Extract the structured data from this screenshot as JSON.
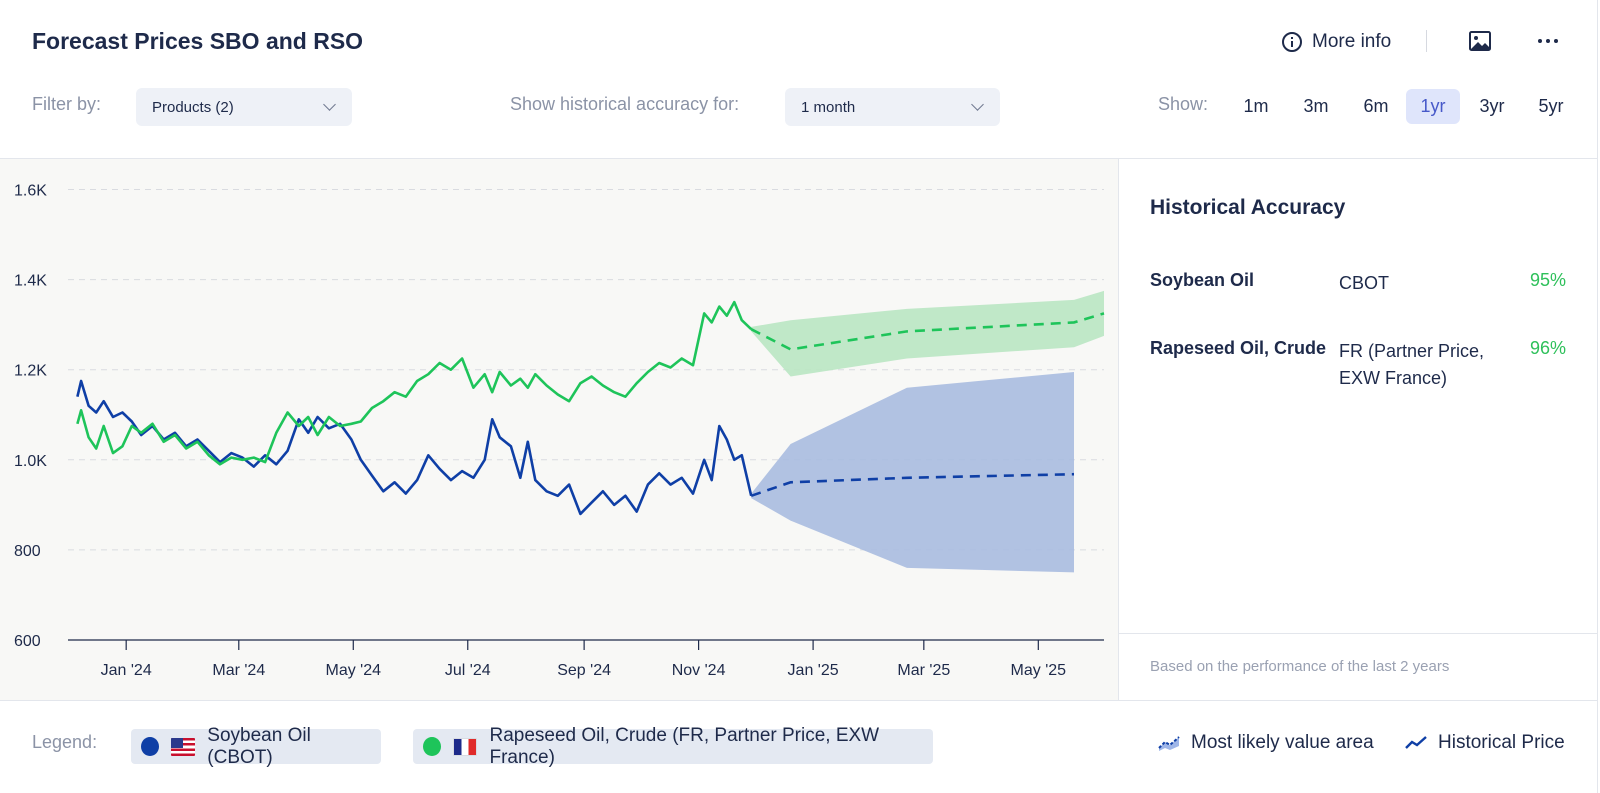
{
  "header": {
    "title": "Forecast Prices SBO and RSO",
    "more_info_label": "More info"
  },
  "filters": {
    "filter_label": "Filter by:",
    "products_value": "Products (2)",
    "accuracy_label": "Show historical accuracy for:",
    "accuracy_value": "1 month",
    "show_label": "Show:",
    "ranges": [
      "1m",
      "3m",
      "6m",
      "1yr",
      "3yr",
      "5yr"
    ],
    "active_range": "1yr"
  },
  "side_panel": {
    "title": "Historical Accuracy",
    "rows": [
      {
        "product": "Soybean Oil",
        "source": "CBOT",
        "accuracy": "95%"
      },
      {
        "product": "Rapeseed Oil, Crude",
        "source": "FR (Partner Price, EXW France)",
        "accuracy": "96%"
      }
    ],
    "footnote": "Based on the performance of the last 2 years"
  },
  "legend": {
    "label": "Legend:",
    "items": [
      {
        "name": "Soybean Oil (CBOT)",
        "color": "#0f3fa6",
        "flag": "us-flag"
      },
      {
        "name": "Rapeseed Oil, Crude (FR, Partner Price, EXW France)",
        "color": "#1ec45a",
        "flag": "fr-flag"
      }
    ],
    "area_label": "Most likely value area",
    "historical_label": "Historical Price"
  },
  "chart_data": {
    "type": "line",
    "ylim": [
      600,
      1650
    ],
    "yticks": [
      600,
      800,
      1000,
      1200,
      1400,
      1600
    ],
    "ytick_labels": [
      "600",
      "800",
      "1.0K",
      "1.2K",
      "1.4K",
      "1.6K"
    ],
    "xlim": [
      "2023-12-01",
      "2025-06-05"
    ],
    "xticks": [
      "2024-01-01",
      "2024-03-01",
      "2024-05-01",
      "2024-07-01",
      "2024-09-01",
      "2024-11-01",
      "2025-01-01",
      "2025-03-01",
      "2025-05-01"
    ],
    "xtick_labels": [
      "Jan '24",
      "Mar '24",
      "May '24",
      "Jul '24",
      "Sep '24",
      "Nov '24",
      "Jan '25",
      "Mar '25",
      "May '25"
    ],
    "grid": true,
    "series": [
      {
        "name": "Soybean Oil (CBOT)",
        "color": "#0f3fa6",
        "band_color": "#a9bbe0",
        "historical": [
          [
            "2023-12-06",
            1140
          ],
          [
            "2023-12-08",
            1175
          ],
          [
            "2023-12-12",
            1120
          ],
          [
            "2023-12-16",
            1105
          ],
          [
            "2023-12-20",
            1130
          ],
          [
            "2023-12-25",
            1095
          ],
          [
            "2023-12-30",
            1105
          ],
          [
            "2024-01-04",
            1085
          ],
          [
            "2024-01-09",
            1055
          ],
          [
            "2024-01-15",
            1075
          ],
          [
            "2024-01-21",
            1045
          ],
          [
            "2024-01-27",
            1060
          ],
          [
            "2024-02-02",
            1030
          ],
          [
            "2024-02-08",
            1045
          ],
          [
            "2024-02-14",
            1020
          ],
          [
            "2024-02-20",
            995
          ],
          [
            "2024-02-26",
            1015
          ],
          [
            "2024-03-03",
            1005
          ],
          [
            "2024-03-09",
            985
          ],
          [
            "2024-03-15",
            1010
          ],
          [
            "2024-03-21",
            990
          ],
          [
            "2024-03-27",
            1020
          ],
          [
            "2024-04-02",
            1090
          ],
          [
            "2024-04-07",
            1060
          ],
          [
            "2024-04-12",
            1095
          ],
          [
            "2024-04-18",
            1070
          ],
          [
            "2024-04-24",
            1080
          ],
          [
            "2024-04-30",
            1045
          ],
          [
            "2024-05-05",
            1000
          ],
          [
            "2024-05-11",
            965
          ],
          [
            "2024-05-17",
            930
          ],
          [
            "2024-05-23",
            950
          ],
          [
            "2024-05-29",
            925
          ],
          [
            "2024-06-04",
            955
          ],
          [
            "2024-06-10",
            1010
          ],
          [
            "2024-06-16",
            980
          ],
          [
            "2024-06-22",
            955
          ],
          [
            "2024-06-28",
            975
          ],
          [
            "2024-07-04",
            960
          ],
          [
            "2024-07-10",
            1000
          ],
          [
            "2024-07-14",
            1090
          ],
          [
            "2024-07-18",
            1050
          ],
          [
            "2024-07-24",
            1030
          ],
          [
            "2024-07-29",
            960
          ],
          [
            "2024-08-02",
            1040
          ],
          [
            "2024-08-06",
            955
          ],
          [
            "2024-08-12",
            930
          ],
          [
            "2024-08-18",
            920
          ],
          [
            "2024-08-24",
            945
          ],
          [
            "2024-08-30",
            880
          ],
          [
            "2024-09-05",
            905
          ],
          [
            "2024-09-11",
            930
          ],
          [
            "2024-09-17",
            900
          ],
          [
            "2024-09-23",
            920
          ],
          [
            "2024-09-29",
            885
          ],
          [
            "2024-10-05",
            945
          ],
          [
            "2024-10-11",
            970
          ],
          [
            "2024-10-17",
            945
          ],
          [
            "2024-10-23",
            960
          ],
          [
            "2024-10-29",
            925
          ],
          [
            "2024-11-04",
            1000
          ],
          [
            "2024-11-08",
            955
          ],
          [
            "2024-11-12",
            1075
          ],
          [
            "2024-11-16",
            1045
          ],
          [
            "2024-11-20",
            1000
          ],
          [
            "2024-11-24",
            1010
          ],
          [
            "2024-11-29",
            920
          ]
        ],
        "forecast": [
          [
            "2024-11-29",
            920
          ],
          [
            "2024-12-20",
            950
          ],
          [
            "2025-02-20",
            960
          ],
          [
            "2025-05-20",
            968
          ]
        ],
        "band_upper": [
          [
            "2024-11-29",
            925
          ],
          [
            "2024-12-20",
            1035
          ],
          [
            "2025-02-20",
            1160
          ],
          [
            "2025-05-20",
            1195
          ]
        ],
        "band_lower": [
          [
            "2024-11-29",
            915
          ],
          [
            "2024-12-20",
            865
          ],
          [
            "2025-02-20",
            760
          ],
          [
            "2025-05-20",
            750
          ]
        ]
      },
      {
        "name": "Rapeseed Oil, Crude (FR, Partner Price, EXW France)",
        "color": "#1ec45a",
        "band_color": "#b9e6c3",
        "historical": [
          [
            "2023-12-06",
            1080
          ],
          [
            "2023-12-08",
            1110
          ],
          [
            "2023-12-12",
            1050
          ],
          [
            "2023-12-16",
            1025
          ],
          [
            "2023-12-20",
            1075
          ],
          [
            "2023-12-25",
            1015
          ],
          [
            "2023-12-30",
            1030
          ],
          [
            "2024-01-04",
            1075
          ],
          [
            "2024-01-09",
            1060
          ],
          [
            "2024-01-15",
            1080
          ],
          [
            "2024-01-21",
            1040
          ],
          [
            "2024-01-27",
            1055
          ],
          [
            "2024-02-02",
            1025
          ],
          [
            "2024-02-08",
            1040
          ],
          [
            "2024-02-14",
            1010
          ],
          [
            "2024-02-20",
            990
          ],
          [
            "2024-02-26",
            1005
          ],
          [
            "2024-03-03",
            1000
          ],
          [
            "2024-03-09",
            1005
          ],
          [
            "2024-03-15",
            995
          ],
          [
            "2024-03-21",
            1060
          ],
          [
            "2024-03-27",
            1105
          ],
          [
            "2024-04-02",
            1075
          ],
          [
            "2024-04-07",
            1095
          ],
          [
            "2024-04-12",
            1055
          ],
          [
            "2024-04-18",
            1095
          ],
          [
            "2024-04-24",
            1075
          ],
          [
            "2024-04-30",
            1080
          ],
          [
            "2024-05-05",
            1085
          ],
          [
            "2024-05-11",
            1115
          ],
          [
            "2024-05-17",
            1130
          ],
          [
            "2024-05-23",
            1150
          ],
          [
            "2024-05-29",
            1140
          ],
          [
            "2024-06-04",
            1175
          ],
          [
            "2024-06-10",
            1190
          ],
          [
            "2024-06-16",
            1215
          ],
          [
            "2024-06-22",
            1200
          ],
          [
            "2024-06-28",
            1225
          ],
          [
            "2024-07-04",
            1160
          ],
          [
            "2024-07-10",
            1190
          ],
          [
            "2024-07-14",
            1150
          ],
          [
            "2024-07-18",
            1195
          ],
          [
            "2024-07-24",
            1165
          ],
          [
            "2024-07-29",
            1180
          ],
          [
            "2024-08-02",
            1160
          ],
          [
            "2024-08-06",
            1190
          ],
          [
            "2024-08-12",
            1165
          ],
          [
            "2024-08-18",
            1145
          ],
          [
            "2024-08-24",
            1130
          ],
          [
            "2024-08-30",
            1170
          ],
          [
            "2024-09-05",
            1185
          ],
          [
            "2024-09-11",
            1165
          ],
          [
            "2024-09-17",
            1150
          ],
          [
            "2024-09-23",
            1140
          ],
          [
            "2024-09-29",
            1170
          ],
          [
            "2024-10-05",
            1195
          ],
          [
            "2024-10-11",
            1215
          ],
          [
            "2024-10-17",
            1205
          ],
          [
            "2024-10-23",
            1225
          ],
          [
            "2024-10-29",
            1210
          ],
          [
            "2024-11-04",
            1325
          ],
          [
            "2024-11-08",
            1305
          ],
          [
            "2024-11-12",
            1340
          ],
          [
            "2024-11-16",
            1320
          ],
          [
            "2024-11-20",
            1350
          ],
          [
            "2024-11-24",
            1310
          ],
          [
            "2024-11-29",
            1290
          ]
        ],
        "forecast": [
          [
            "2024-11-29",
            1290
          ],
          [
            "2024-12-20",
            1245
          ],
          [
            "2025-02-20",
            1285
          ],
          [
            "2025-05-20",
            1305
          ],
          [
            "2025-06-05",
            1325
          ]
        ],
        "band_upper": [
          [
            "2024-11-29",
            1295
          ],
          [
            "2024-12-20",
            1310
          ],
          [
            "2025-02-20",
            1335
          ],
          [
            "2025-05-20",
            1355
          ],
          [
            "2025-06-05",
            1375
          ]
        ],
        "band_lower": [
          [
            "2024-11-29",
            1285
          ],
          [
            "2024-12-20",
            1185
          ],
          [
            "2025-02-20",
            1225
          ],
          [
            "2025-05-20",
            1250
          ],
          [
            "2025-06-05",
            1275
          ]
        ]
      }
    ]
  }
}
